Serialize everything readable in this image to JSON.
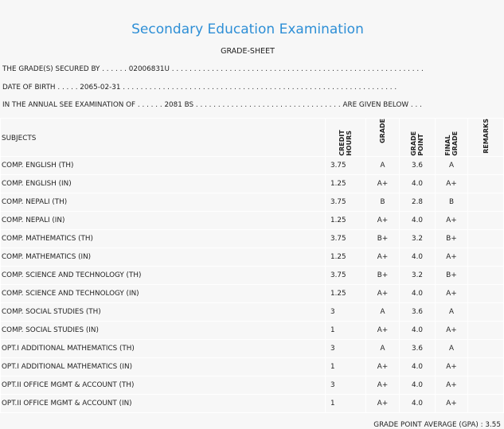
{
  "header": {
    "title": "Secondary Education Examination",
    "subtitle": "GRADE-SHEET"
  },
  "info": {
    "secured_by": "THE GRADE(S) SECURED BY . . . . . . 02006831U . . . . . . . . . . . . . . . . . . . . . . . . . . . . . . . . . . . . . . . . . . . . . . . . . . . . . . . . .",
    "dob": "DATE OF BIRTH . . . . . 2065-02-31 . . . . . . . . . . . . . . . . . . . . . . . . . . . . . . . . . . . . . . . . . . . . . . . . . . . . . . . . . . . . . .",
    "exam": "IN THE ANNUAL SEE EXAMINATION OF . . . . . . 2081 BS . . . . . . . . . . . . . . . . . . . . . . . . . . . . . . . . . ARE GIVEN BELOW . . ."
  },
  "table": {
    "headers": {
      "subjects": "SUBJECTS",
      "credit_hours": "CREDIT HOURS",
      "grade": "GRADE",
      "grade_point": "GRADE POINT",
      "final_grade": "FINAL GRADE",
      "remarks": "REMARKS"
    },
    "rows": [
      {
        "subject": "COMP. ENGLISH (TH)",
        "credit": "3.75",
        "grade": "A",
        "gp": "3.6",
        "final": "A"
      },
      {
        "subject": "COMP. ENGLISH (IN)",
        "credit": "1.25",
        "grade": "A+",
        "gp": "4.0",
        "final": "A+"
      },
      {
        "subject": "COMP. NEPALI (TH)",
        "credit": "3.75",
        "grade": "B",
        "gp": "2.8",
        "final": "B"
      },
      {
        "subject": "COMP. NEPALI (IN)",
        "credit": "1.25",
        "grade": "A+",
        "gp": "4.0",
        "final": "A+"
      },
      {
        "subject": "COMP. MATHEMATICS (TH)",
        "credit": "3.75",
        "grade": "B+",
        "gp": "3.2",
        "final": "B+"
      },
      {
        "subject": "COMP. MATHEMATICS (IN)",
        "credit": "1.25",
        "grade": "A+",
        "gp": "4.0",
        "final": "A+"
      },
      {
        "subject": "COMP. SCIENCE AND TECHNOLOGY (TH)",
        "credit": "3.75",
        "grade": "B+",
        "gp": "3.2",
        "final": "B+"
      },
      {
        "subject": "COMP. SCIENCE AND TECHNOLOGY (IN)",
        "credit": "1.25",
        "grade": "A+",
        "gp": "4.0",
        "final": "A+"
      },
      {
        "subject": "COMP. SOCIAL STUDIES (TH)",
        "credit": "3",
        "grade": "A",
        "gp": "3.6",
        "final": "A"
      },
      {
        "subject": "COMP. SOCIAL STUDIES (IN)",
        "credit": "1",
        "grade": "A+",
        "gp": "4.0",
        "final": "A+"
      },
      {
        "subject": "OPT.I ADDITIONAL MATHEMATICS (TH)",
        "credit": "3",
        "grade": "A",
        "gp": "3.6",
        "final": "A"
      },
      {
        "subject": "OPT.I ADDITIONAL MATHEMATICS (IN)",
        "credit": "1",
        "grade": "A+",
        "gp": "4.0",
        "final": "A+"
      },
      {
        "subject": "OPT.II OFFICE MGMT & ACCOUNT (TH)",
        "credit": "3",
        "grade": "A+",
        "gp": "4.0",
        "final": "A+"
      },
      {
        "subject": "OPT.II OFFICE MGMT & ACCOUNT (IN)",
        "credit": "1",
        "grade": "A+",
        "gp": "4.0",
        "final": "A+"
      }
    ]
  },
  "gpa": "GRADE POINT AVERAGE (GPA) : 3.55",
  "colors": {
    "title": "#2e8fd6",
    "background": "#f7f7f7",
    "grid": "#ffffff"
  }
}
